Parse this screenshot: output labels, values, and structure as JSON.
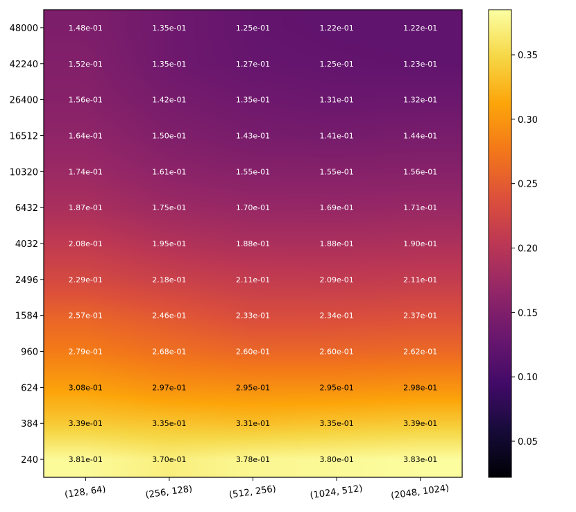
{
  "chart_data": {
    "type": "heatmap",
    "title": "",
    "xlabel": "",
    "ylabel": "",
    "x_categories": [
      "(128, 64)",
      "(256, 128)",
      "(512, 256)",
      "(1024, 512)",
      "(2048, 1024)"
    ],
    "y_categories": [
      "48000",
      "42240",
      "26400",
      "16512",
      "10320",
      "6432",
      "4032",
      "2496",
      "1584",
      "960",
      "624",
      "384",
      "240"
    ],
    "values": [
      [
        0.148,
        0.135,
        0.125,
        0.122,
        0.122
      ],
      [
        0.152,
        0.135,
        0.127,
        0.125,
        0.123
      ],
      [
        0.156,
        0.142,
        0.135,
        0.131,
        0.132
      ],
      [
        0.164,
        0.15,
        0.143,
        0.141,
        0.144
      ],
      [
        0.174,
        0.161,
        0.155,
        0.155,
        0.156
      ],
      [
        0.187,
        0.175,
        0.17,
        0.169,
        0.171
      ],
      [
        0.208,
        0.195,
        0.188,
        0.188,
        0.19
      ],
      [
        0.229,
        0.218,
        0.211,
        0.209,
        0.211
      ],
      [
        0.257,
        0.246,
        0.233,
        0.234,
        0.237
      ],
      [
        0.279,
        0.268,
        0.26,
        0.26,
        0.262
      ],
      [
        0.308,
        0.297,
        0.295,
        0.295,
        0.298
      ],
      [
        0.339,
        0.335,
        0.331,
        0.335,
        0.339
      ],
      [
        0.381,
        0.37,
        0.378,
        0.38,
        0.383
      ]
    ],
    "cell_labels": [
      [
        "1.48e-01",
        "1.35e-01",
        "1.25e-01",
        "1.22e-01",
        "1.22e-01"
      ],
      [
        "1.52e-01",
        "1.35e-01",
        "1.27e-01",
        "1.25e-01",
        "1.23e-01"
      ],
      [
        "1.56e-01",
        "1.42e-01",
        "1.35e-01",
        "1.31e-01",
        "1.32e-01"
      ],
      [
        "1.64e-01",
        "1.50e-01",
        "1.43e-01",
        "1.41e-01",
        "1.44e-01"
      ],
      [
        "1.74e-01",
        "1.61e-01",
        "1.55e-01",
        "1.55e-01",
        "1.56e-01"
      ],
      [
        "1.87e-01",
        "1.75e-01",
        "1.70e-01",
        "1.69e-01",
        "1.71e-01"
      ],
      [
        "2.08e-01",
        "1.95e-01",
        "1.88e-01",
        "1.88e-01",
        "1.90e-01"
      ],
      [
        "2.29e-01",
        "2.18e-01",
        "2.11e-01",
        "2.09e-01",
        "2.11e-01"
      ],
      [
        "2.57e-01",
        "2.46e-01",
        "2.33e-01",
        "2.34e-01",
        "2.37e-01"
      ],
      [
        "2.79e-01",
        "2.68e-01",
        "2.60e-01",
        "2.60e-01",
        "2.62e-01"
      ],
      [
        "3.08e-01",
        "2.97e-01",
        "2.95e-01",
        "2.95e-01",
        "2.98e-01"
      ],
      [
        "3.39e-01",
        "3.35e-01",
        "3.31e-01",
        "3.35e-01",
        "3.39e-01"
      ],
      [
        "3.81e-01",
        "3.70e-01",
        "3.78e-01",
        "3.80e-01",
        "3.83e-01"
      ]
    ],
    "colormap": "inferno",
    "colorbar": {
      "range": [
        0.022,
        0.385
      ],
      "ticks": [
        0.05,
        0.1,
        0.15,
        0.2,
        0.25,
        0.3,
        0.35
      ],
      "tick_labels": [
        "0.05",
        "0.10",
        "0.15",
        "0.20",
        "0.25",
        "0.30",
        "0.35"
      ]
    },
    "shading": "smooth",
    "label_dark_threshold": 0.295,
    "colors": {
      "label_light": "#ffffff",
      "label_dark": "#000000",
      "frame": "#000000"
    }
  }
}
